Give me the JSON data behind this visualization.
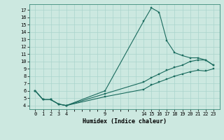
{
  "xlabel": "Humidex (Indice chaleur)",
  "bg_color": "#cce8e0",
  "line_color": "#1a6b5e",
  "grid_color": "#aad4cc",
  "xlim": [
    -0.8,
    23.8
  ],
  "ylim": [
    3.5,
    17.8
  ],
  "xticks": [
    0,
    1,
    2,
    3,
    4,
    9,
    14,
    15,
    16,
    17,
    18,
    19,
    20,
    21,
    22,
    23
  ],
  "yticks": [
    4,
    5,
    6,
    7,
    8,
    9,
    10,
    11,
    12,
    13,
    14,
    15,
    16,
    17
  ],
  "line1_x": [
    0,
    1,
    2,
    3,
    4,
    9,
    14,
    15,
    16,
    17,
    18,
    19,
    20,
    21,
    22,
    23
  ],
  "line1_y": [
    6.0,
    4.8,
    4.8,
    4.2,
    4.0,
    6.0,
    15.5,
    17.3,
    16.7,
    12.8,
    11.2,
    10.8,
    10.5,
    10.5,
    10.2,
    9.5
  ],
  "line2_x": [
    0,
    1,
    2,
    3,
    4,
    9,
    14,
    15,
    16,
    17,
    18,
    19,
    20,
    21,
    22,
    23
  ],
  "line2_y": [
    6.0,
    4.8,
    4.8,
    4.2,
    4.0,
    5.6,
    7.2,
    7.8,
    8.3,
    8.8,
    9.2,
    9.5,
    10.0,
    10.2,
    10.2,
    9.5
  ],
  "line3_x": [
    0,
    1,
    2,
    3,
    4,
    9,
    14,
    15,
    16,
    17,
    18,
    19,
    20,
    21,
    22,
    23
  ],
  "line3_y": [
    6.0,
    4.8,
    4.8,
    4.2,
    4.0,
    5.2,
    6.2,
    6.8,
    7.2,
    7.6,
    8.0,
    8.3,
    8.6,
    8.8,
    8.7,
    9.0
  ]
}
